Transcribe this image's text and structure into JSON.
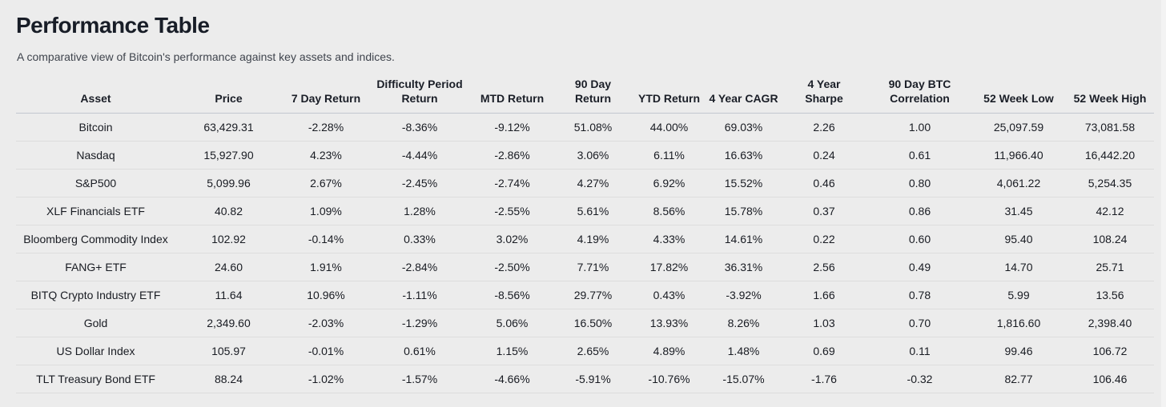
{
  "header": {
    "title": "Performance Table",
    "subtitle": "A comparative view of Bitcoin's performance against key assets and indices."
  },
  "colors": {
    "positive": "#169c2d",
    "negative": "#da2a2a",
    "background": "#ececec",
    "text": "#181b22"
  },
  "table": {
    "columns": [
      {
        "name": "asset",
        "label": "Asset"
      },
      {
        "name": "price",
        "label": "Price"
      },
      {
        "name": "7-day-return",
        "label": "7 Day Return"
      },
      {
        "name": "difficulty-period-return",
        "label": "Difficulty Period\nReturn"
      },
      {
        "name": "mtd-return",
        "label": "MTD Return"
      },
      {
        "name": "90-day-return",
        "label": "90 Day\nReturn"
      },
      {
        "name": "ytd-return",
        "label": "YTD Return"
      },
      {
        "name": "4-year-cagr",
        "label": "4 Year CAGR"
      },
      {
        "name": "4-year-sharpe",
        "label": "4 Year\nSharpe"
      },
      {
        "name": "90-day-btc-correlation",
        "label": "90 Day BTC\nCorrelation"
      },
      {
        "name": "52-week-low",
        "label": "52 Week Low"
      },
      {
        "name": "52-week-high",
        "label": "52 Week High"
      }
    ],
    "color_coded_columns": [
      2,
      3,
      4,
      5,
      6,
      7,
      8,
      9
    ],
    "rows": [
      [
        "Bitcoin",
        "63,429.31",
        "-2.28%",
        "-8.36%",
        "-9.12%",
        "51.08%",
        "44.00%",
        "69.03%",
        "2.26",
        "1.00",
        "25,097.59",
        "73,081.58"
      ],
      [
        "Nasdaq",
        "15,927.90",
        "4.23%",
        "-4.44%",
        "-2.86%",
        "3.06%",
        "6.11%",
        "16.63%",
        "0.24",
        "0.61",
        "11,966.40",
        "16,442.20"
      ],
      [
        "S&P500",
        "5,099.96",
        "2.67%",
        "-2.45%",
        "-2.74%",
        "4.27%",
        "6.92%",
        "15.52%",
        "0.46",
        "0.80",
        "4,061.22",
        "5,254.35"
      ],
      [
        "XLF Financials ETF",
        "40.82",
        "1.09%",
        "1.28%",
        "-2.55%",
        "5.61%",
        "8.56%",
        "15.78%",
        "0.37",
        "0.86",
        "31.45",
        "42.12"
      ],
      [
        "Bloomberg Commodity Index",
        "102.92",
        "-0.14%",
        "0.33%",
        "3.02%",
        "4.19%",
        "4.33%",
        "14.61%",
        "0.22",
        "0.60",
        "95.40",
        "108.24"
      ],
      [
        "FANG+ ETF",
        "24.60",
        "1.91%",
        "-2.84%",
        "-2.50%",
        "7.71%",
        "17.82%",
        "36.31%",
        "2.56",
        "0.49",
        "14.70",
        "25.71"
      ],
      [
        "BITQ Crypto Industry ETF",
        "11.64",
        "10.96%",
        "-1.11%",
        "-8.56%",
        "29.77%",
        "0.43%",
        "-3.92%",
        "1.66",
        "0.78",
        "5.99",
        "13.56"
      ],
      [
        "Gold",
        "2,349.60",
        "-2.03%",
        "-1.29%",
        "5.06%",
        "16.50%",
        "13.93%",
        "8.26%",
        "1.03",
        "0.70",
        "1,816.60",
        "2,398.40"
      ],
      [
        "US Dollar Index",
        "105.97",
        "-0.01%",
        "0.61%",
        "1.15%",
        "2.65%",
        "4.89%",
        "1.48%",
        "0.69",
        "0.11",
        "99.46",
        "106.72"
      ],
      [
        "TLT Treasury Bond ETF",
        "88.24",
        "-1.02%",
        "-1.57%",
        "-4.66%",
        "-5.91%",
        "-10.76%",
        "-15.07%",
        "-1.76",
        "-0.32",
        "82.77",
        "106.46"
      ]
    ]
  }
}
